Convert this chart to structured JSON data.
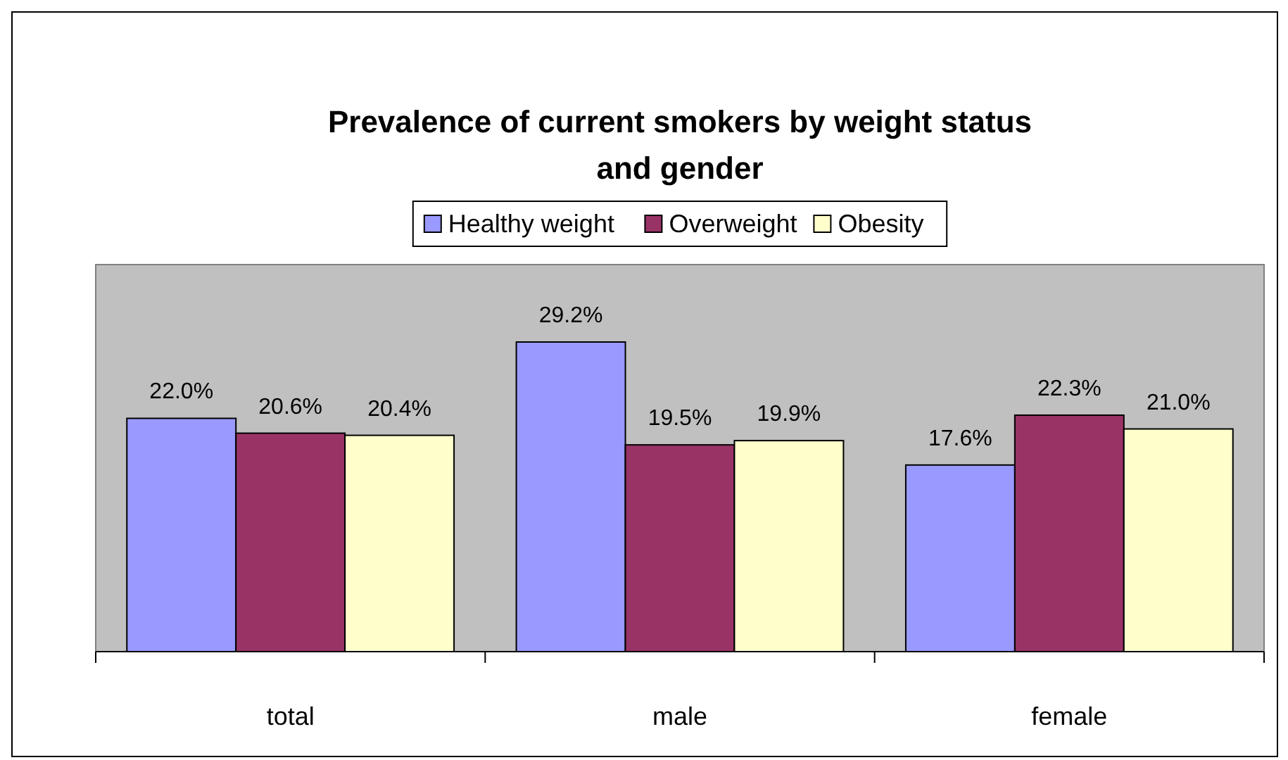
{
  "chart_data": {
    "type": "bar",
    "title": "Prevalence of current smokers by weight status and gender",
    "categories": [
      "total",
      "male",
      "female"
    ],
    "series": [
      {
        "name": "Healthy weight",
        "color": "#9999ff",
        "values": [
          22.0,
          29.2,
          17.6
        ],
        "value_labels": [
          "22.0%",
          "29.2%",
          "17.6%"
        ]
      },
      {
        "name": "Overweight",
        "color": "#993366",
        "values": [
          20.6,
          19.5,
          22.3
        ],
        "value_labels": [
          "20.6%",
          "19.5%",
          "22.3%"
        ]
      },
      {
        "name": "Obesity",
        "color": "#ffffcc",
        "values": [
          20.4,
          19.9,
          21.0
        ],
        "value_labels": [
          "20.4%",
          "19.9%",
          "21.0%"
        ]
      }
    ],
    "legend": "top",
    "grid": false
  }
}
